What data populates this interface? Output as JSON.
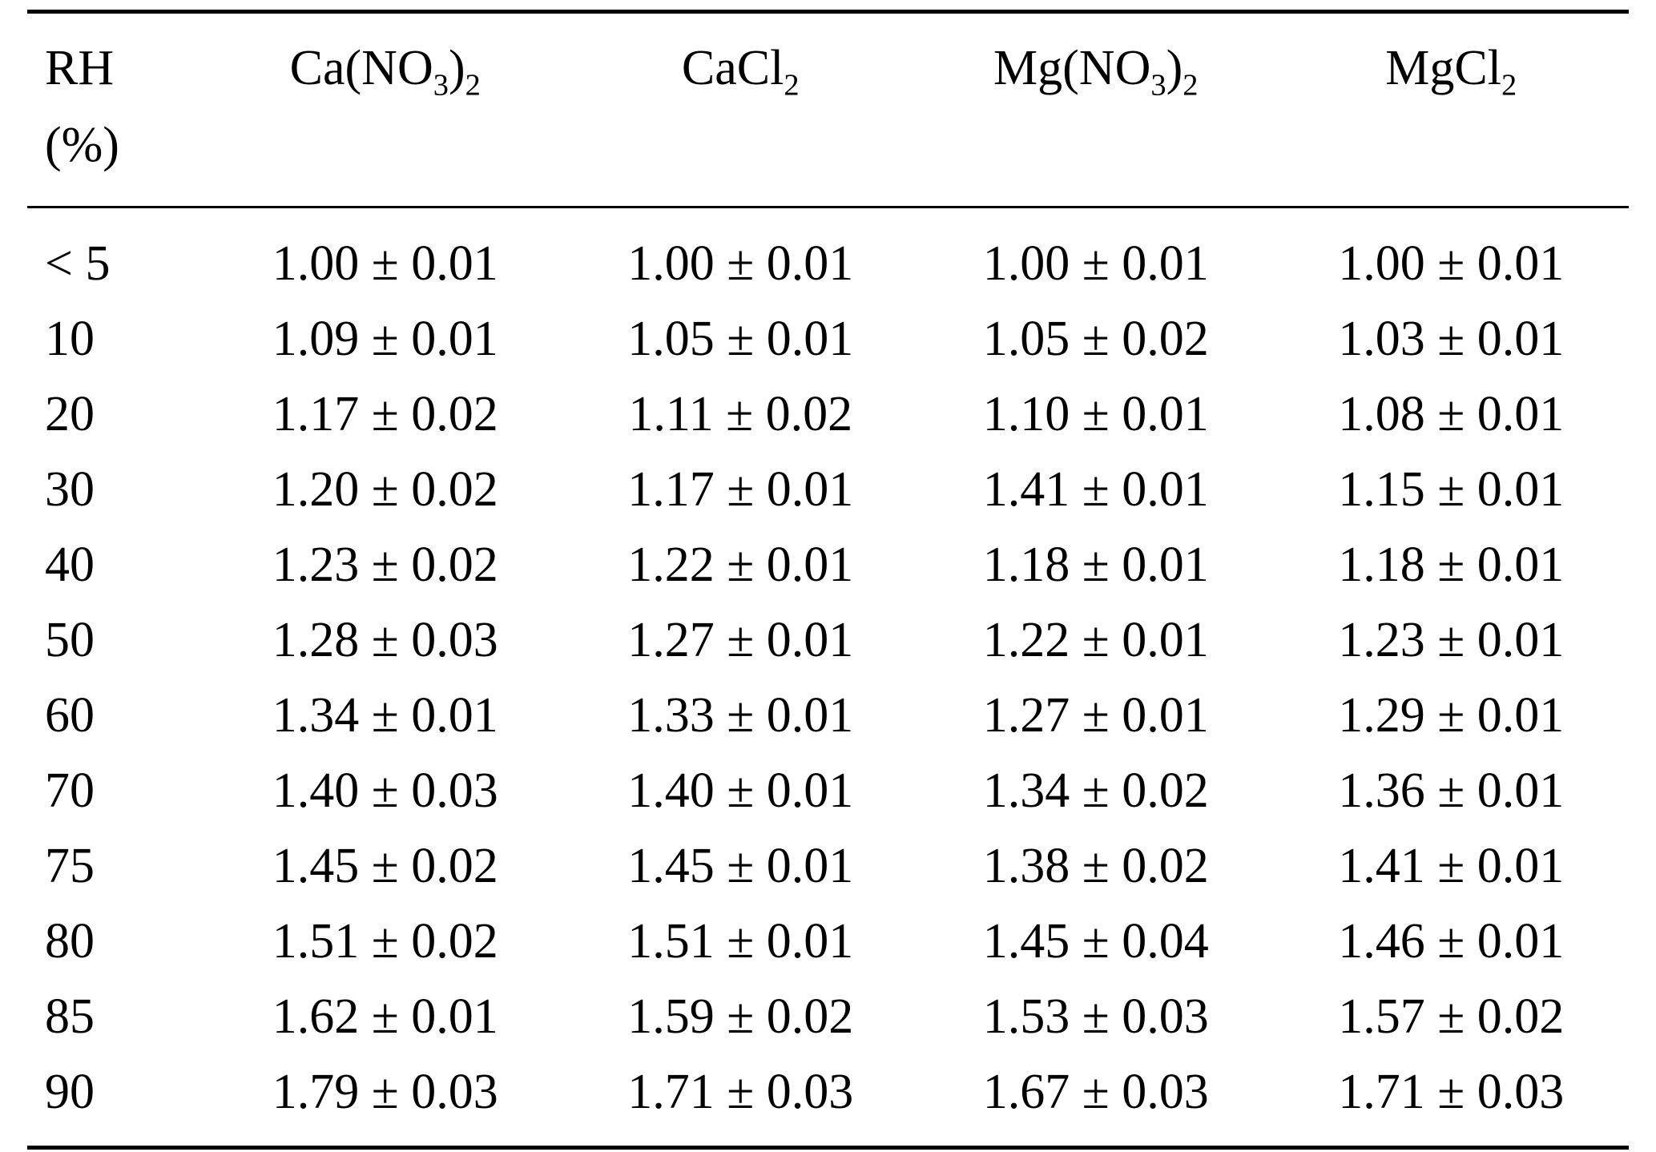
{
  "table": {
    "rh_header": {
      "line1": "RH",
      "line2": "(%)"
    },
    "columns": [
      {
        "id": "ca-nitrate",
        "parts": [
          {
            "text": "Ca(NO"
          },
          {
            "sub": "3"
          },
          {
            "text": ")"
          },
          {
            "sub": "2"
          }
        ]
      },
      {
        "id": "ca-chloride",
        "parts": [
          {
            "text": "CaCl"
          },
          {
            "sub": "2"
          }
        ]
      },
      {
        "id": "mg-nitrate",
        "parts": [
          {
            "text": "Mg(NO"
          },
          {
            "sub": "3"
          },
          {
            "text": ")"
          },
          {
            "sub": "2"
          }
        ]
      },
      {
        "id": "mg-chloride",
        "parts": [
          {
            "text": "MgCl"
          },
          {
            "sub": "2"
          }
        ]
      }
    ],
    "rows": [
      {
        "rh": "< 5",
        "cells": [
          "1.00 ± 0.01",
          "1.00 ± 0.01",
          "1.00 ± 0.01",
          "1.00 ± 0.01"
        ]
      },
      {
        "rh": "10",
        "cells": [
          "1.09 ± 0.01",
          "1.05 ± 0.01",
          "1.05 ± 0.02",
          "1.03 ± 0.01"
        ]
      },
      {
        "rh": "20",
        "cells": [
          "1.17 ± 0.02",
          "1.11 ± 0.02",
          "1.10 ± 0.01",
          "1.08 ± 0.01"
        ]
      },
      {
        "rh": "30",
        "cells": [
          "1.20 ± 0.02",
          "1.17 ± 0.01",
          "1.41 ± 0.01",
          "1.15 ± 0.01"
        ]
      },
      {
        "rh": "40",
        "cells": [
          "1.23 ± 0.02",
          "1.22 ± 0.01",
          "1.18 ± 0.01",
          "1.18 ± 0.01"
        ]
      },
      {
        "rh": "50",
        "cells": [
          "1.28 ± 0.03",
          "1.27 ± 0.01",
          "1.22 ± 0.01",
          "1.23 ± 0.01"
        ]
      },
      {
        "rh": "60",
        "cells": [
          "1.34 ± 0.01",
          "1.33 ± 0.01",
          "1.27 ± 0.01",
          "1.29 ± 0.01"
        ]
      },
      {
        "rh": "70",
        "cells": [
          "1.40 ± 0.03",
          "1.40 ± 0.01",
          "1.34 ± 0.02",
          "1.36 ± 0.01"
        ]
      },
      {
        "rh": "75",
        "cells": [
          "1.45 ± 0.02",
          "1.45 ± 0.01",
          "1.38 ± 0.02",
          "1.41 ± 0.01"
        ]
      },
      {
        "rh": "80",
        "cells": [
          "1.51 ± 0.02",
          "1.51 ± 0.01",
          "1.45 ± 0.04",
          "1.46 ± 0.01"
        ]
      },
      {
        "rh": "85",
        "cells": [
          "1.62 ± 0.01",
          "1.59 ± 0.02",
          "1.53 ± 0.03",
          "1.57 ± 0.02"
        ]
      },
      {
        "rh": "90",
        "cells": [
          "1.79 ± 0.03",
          "1.71 ± 0.03",
          "1.67 ± 0.03",
          "1.71 ± 0.03"
        ]
      }
    ]
  }
}
